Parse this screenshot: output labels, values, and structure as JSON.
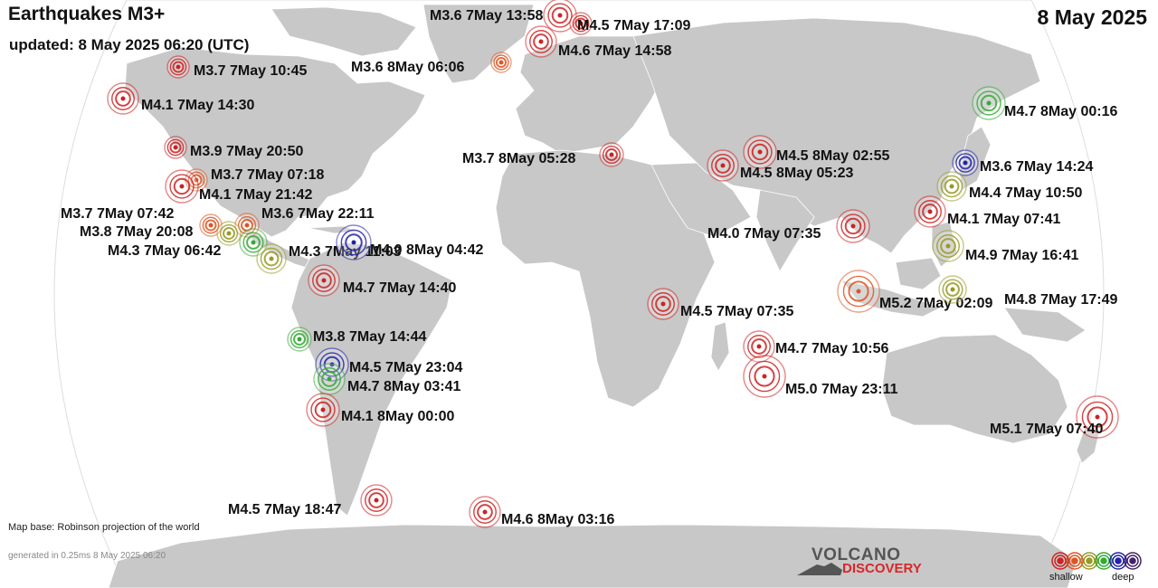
{
  "header": {
    "title": "Earthquakes M3+",
    "updated": "updated:  8 May 2025 06:20 (UTC)",
    "date": "8 May 2025"
  },
  "footer": {
    "map_base": "Map base: Robinson projection of the world",
    "generated": "generated in 0.25ms  8 May 2025 06:20"
  },
  "logo": {
    "line1": "VOLCANO",
    "line2": "DISCOVERY"
  },
  "legend": {
    "shallow": "shallow",
    "deep": "deep",
    "depth_colors": [
      "#cc2222",
      "#dd5522",
      "#999922",
      "#33aa33",
      "#2222aa",
      "#442266"
    ]
  },
  "colors": {
    "ocean": "#ffffff",
    "land": "#c8c8c8",
    "border": "#ffffff",
    "logo_red": "#d8262a"
  },
  "quakes": [
    {
      "label": "M3.6  7May 13:58"
    },
    {
      "label": "M4.5  7May 17:09"
    },
    {
      "label": "M4.6  7May 14:58"
    },
    {
      "label": "M3.6  8May 06:06"
    },
    {
      "label": "M3.7  7May 10:45"
    },
    {
      "label": "M4.1  7May 14:30"
    },
    {
      "label": "M4.7  8May 00:16"
    },
    {
      "label": "M3.9  7May 20:50"
    },
    {
      "label": "M3.7  7May 07:18"
    },
    {
      "label": "M4.1  7May 21:42"
    },
    {
      "label": "M3.7  7May 07:42"
    },
    {
      "label": "M3.6  7May 22:11"
    },
    {
      "label": "M3.8  7May 20:08"
    },
    {
      "label": "M4.3  7May 06:42"
    },
    {
      "label": "M4.3  7May 11:03"
    },
    {
      "label": "M4.0  8May 04:42"
    },
    {
      "label": "M4.7  7May 14:40"
    },
    {
      "label": "M3.7  8May 05:28"
    },
    {
      "label": "M4.5  8May 02:55"
    },
    {
      "label": "M4.5  8May 05:23"
    },
    {
      "label": "M3.6  7May 14:24"
    },
    {
      "label": "M4.4  7May 10:50"
    },
    {
      "label": "M4.1  7May 07:41"
    },
    {
      "label": "M4.0  7May 07:35"
    },
    {
      "label": "M4.9  7May 16:41"
    },
    {
      "label": "M5.2  7May 02:09"
    },
    {
      "label": "M4.8  7May 17:49"
    },
    {
      "label": "M4.5  7May 07:35"
    },
    {
      "label": "M3.8  7May 14:44"
    },
    {
      "label": "M4.5  7May 23:04"
    },
    {
      "label": "M4.7  8May 03:41"
    },
    {
      "label": "M4.1  8May 00:00"
    },
    {
      "label": "M4.7  7May 10:56"
    },
    {
      "label": "M5.0  7May 23:11"
    },
    {
      "label": "M5.1  7May 07:40"
    },
    {
      "label": "M4.5  7May 18:47"
    },
    {
      "label": "M4.6  8May 03:16"
    }
  ]
}
